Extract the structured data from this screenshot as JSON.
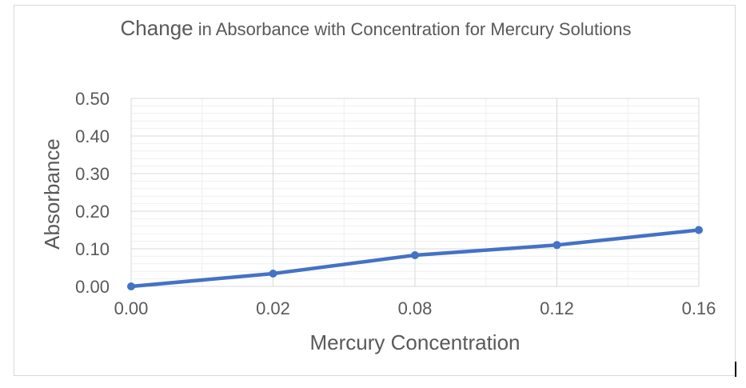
{
  "chart_data": {
    "type": "line",
    "title_lead": "Change",
    "title_rest": " in Absorbance with Concentration for Mercury Solutions",
    "xlabel": "Mercury Concentration",
    "ylabel": "Absorbance",
    "x": [
      "0.00",
      "0.02",
      "0.08",
      "0.12",
      "0.16"
    ],
    "y_ticks": [
      "0.00",
      "0.10",
      "0.20",
      "0.30",
      "0.40",
      "0.50"
    ],
    "ylim": [
      0,
      0.5
    ],
    "series": [
      {
        "values": [
          0.0,
          0.034,
          0.083,
          0.11,
          0.15
        ]
      }
    ],
    "grid": true,
    "legend": "none",
    "color": "#4472c4"
  }
}
